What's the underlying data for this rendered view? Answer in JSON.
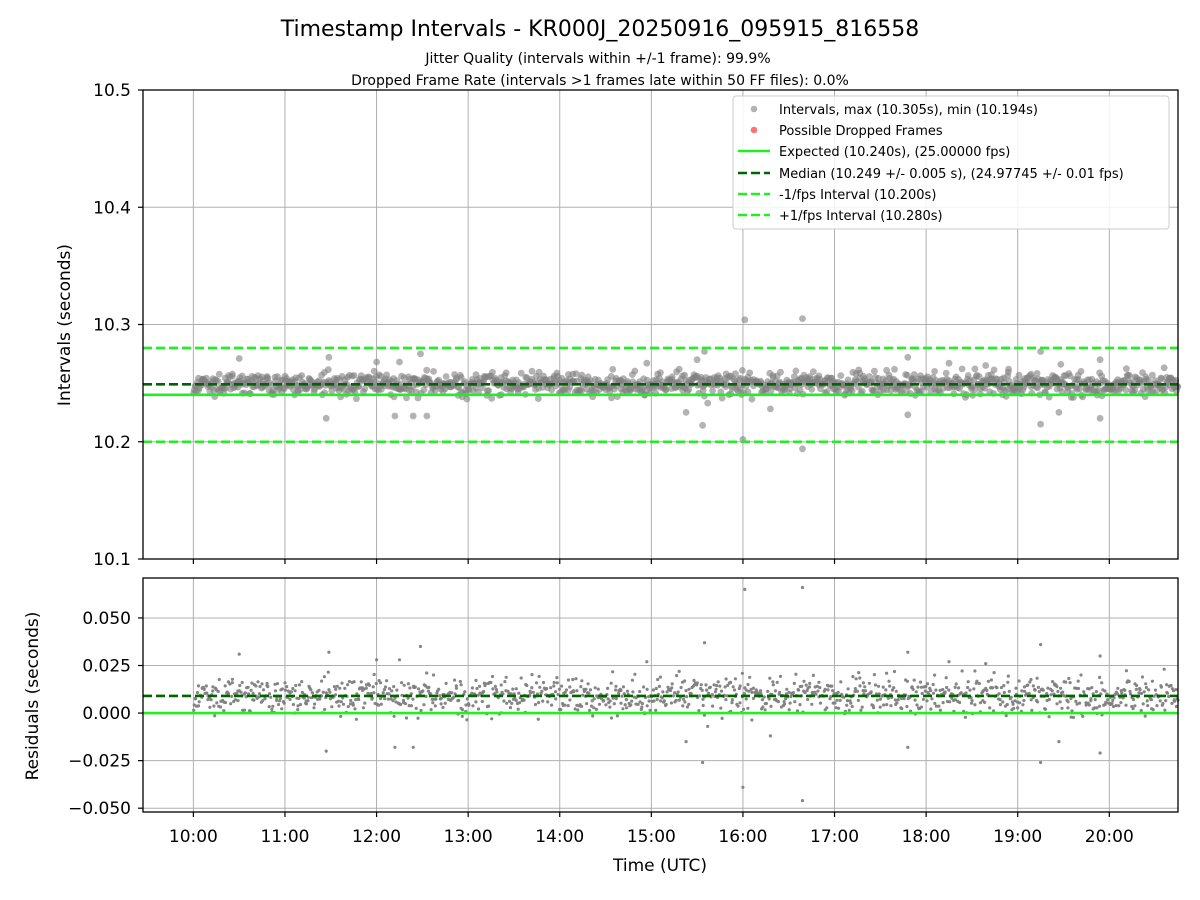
{
  "figure": {
    "title": "Timestamp Intervals - KR000J_20250916_095915_816558",
    "subtitle_jitter": "Jitter Quality (intervals within +/-1 frame): 99.9%",
    "subtitle_dropped": "Dropped Frame Rate (intervals >1 frames late within 50 FF files): 0.0%"
  },
  "colors": {
    "scatter": "#808080",
    "dropped": "#ff0000",
    "expected": "#22ee22",
    "median": "#006400",
    "interval_lines": "#22ee22",
    "grid": "#b0b0b0"
  },
  "chart_data": [
    {
      "type": "scatter",
      "ylabel": "Intervals (seconds)",
      "xlabel": "",
      "xlim_hours": [
        9.45,
        20.75
      ],
      "ylim": [
        10.1,
        10.5
      ],
      "yticks": [
        10.1,
        10.2,
        10.3,
        10.4,
        10.5
      ],
      "ytick_labels": [
        "10.1",
        "10.2",
        "10.3",
        "10.4",
        "10.5"
      ],
      "grid": true,
      "legend_position": "upper-right",
      "legend": [
        {
          "label": "Intervals, max (10.305s), min (10.194s)",
          "kind": "marker",
          "color": "#808080"
        },
        {
          "label": "Possible Dropped Frames",
          "kind": "marker",
          "color": "#ff0000"
        },
        {
          "label": "Expected (10.240s), (25.00000 fps)",
          "kind": "solid",
          "color": "#22ee22"
        },
        {
          "label": "Median (10.249 +/- 0.005 s), (24.97745 +/- 0.01 fps)",
          "kind": "dashed",
          "color": "#006400"
        },
        {
          "label": "-1/fps Interval (10.200s)",
          "kind": "dashed",
          "color": "#22ee22"
        },
        {
          "label": "+1/fps Interval (10.280s)",
          "kind": "dashed",
          "color": "#22ee22"
        }
      ],
      "reference_lines": [
        {
          "name": "expected",
          "y": 10.24,
          "style": "solid",
          "color": "#22ee22"
        },
        {
          "name": "median",
          "y": 10.249,
          "style": "dashed",
          "color": "#006400"
        },
        {
          "name": "minus-1fps",
          "y": 10.2,
          "style": "dashed",
          "color": "#22ee22"
        },
        {
          "name": "plus-1fps",
          "y": 10.28,
          "style": "dashed",
          "color": "#22ee22"
        }
      ],
      "series": {
        "x_start_hours": 10.0,
        "x_end_hours": 20.75,
        "median": 10.249,
        "spread": 0.005,
        "dense_count": 1250,
        "outliers": [
          [
            10.5,
            10.271
          ],
          [
            11.48,
            10.272
          ],
          [
            11.45,
            10.22
          ],
          [
            12.0,
            10.268
          ],
          [
            12.48,
            10.275
          ],
          [
            12.25,
            10.268
          ],
          [
            12.2,
            10.222
          ],
          [
            12.4,
            10.222
          ],
          [
            12.55,
            10.222
          ],
          [
            14.95,
            10.267
          ],
          [
            15.5,
            10.27
          ],
          [
            15.58,
            10.277
          ],
          [
            15.56,
            10.214
          ],
          [
            15.38,
            10.225
          ],
          [
            16.02,
            10.304
          ],
          [
            16.0,
            10.202
          ],
          [
            16.65,
            10.305
          ],
          [
            16.65,
            10.194
          ],
          [
            16.3,
            10.228
          ],
          [
            17.8,
            10.272
          ],
          [
            17.8,
            10.223
          ],
          [
            18.25,
            10.267
          ],
          [
            18.65,
            10.265
          ],
          [
            19.25,
            10.277
          ],
          [
            19.25,
            10.215
          ],
          [
            19.45,
            10.225
          ],
          [
            19.47,
            10.266
          ],
          [
            19.9,
            10.27
          ],
          [
            19.9,
            10.22
          ],
          [
            18.9,
            10.262
          ]
        ]
      }
    },
    {
      "type": "scatter",
      "ylabel": "Residuals (seconds)",
      "xlabel": "Time (UTC)",
      "xlim_hours": [
        9.45,
        20.75
      ],
      "ylim": [
        -0.052,
        0.071
      ],
      "yticks": [
        -0.05,
        -0.025,
        0.0,
        0.025,
        0.05
      ],
      "ytick_labels": [
        "−0.050",
        "−0.025",
        "0.000",
        "0.025",
        "0.050"
      ],
      "xticks_hours": [
        10,
        11,
        12,
        13,
        14,
        15,
        16,
        17,
        18,
        19,
        20
      ],
      "xtick_labels": [
        "10:00",
        "11:00",
        "12:00",
        "13:00",
        "14:00",
        "15:00",
        "16:00",
        "17:00",
        "18:00",
        "19:00",
        "20:00"
      ],
      "grid": true,
      "reference_lines": [
        {
          "name": "zero",
          "y": 0.0,
          "style": "solid",
          "color": "#22ee22"
        },
        {
          "name": "median-residual",
          "y": 0.009,
          "style": "dashed",
          "color": "#006400"
        }
      ],
      "series": {
        "median": 0.009,
        "spread": 0.005,
        "dense_count": 1250,
        "outliers": [
          [
            10.5,
            0.031
          ],
          [
            11.48,
            0.032
          ],
          [
            11.45,
            -0.02
          ],
          [
            12.0,
            0.028
          ],
          [
            12.48,
            0.035
          ],
          [
            12.25,
            0.028
          ],
          [
            12.2,
            -0.018
          ],
          [
            12.4,
            -0.018
          ],
          [
            14.95,
            0.027
          ],
          [
            15.58,
            0.037
          ],
          [
            15.56,
            -0.026
          ],
          [
            15.38,
            -0.015
          ],
          [
            16.02,
            0.065
          ],
          [
            16.0,
            -0.039
          ],
          [
            16.65,
            0.066
          ],
          [
            16.65,
            -0.046
          ],
          [
            16.3,
            -0.012
          ],
          [
            17.8,
            0.032
          ],
          [
            17.8,
            -0.018
          ],
          [
            18.25,
            0.027
          ],
          [
            18.65,
            0.026
          ],
          [
            19.25,
            0.036
          ],
          [
            19.25,
            -0.026
          ],
          [
            19.45,
            -0.015
          ],
          [
            19.9,
            0.03
          ],
          [
            19.9,
            -0.021
          ]
        ]
      }
    }
  ]
}
